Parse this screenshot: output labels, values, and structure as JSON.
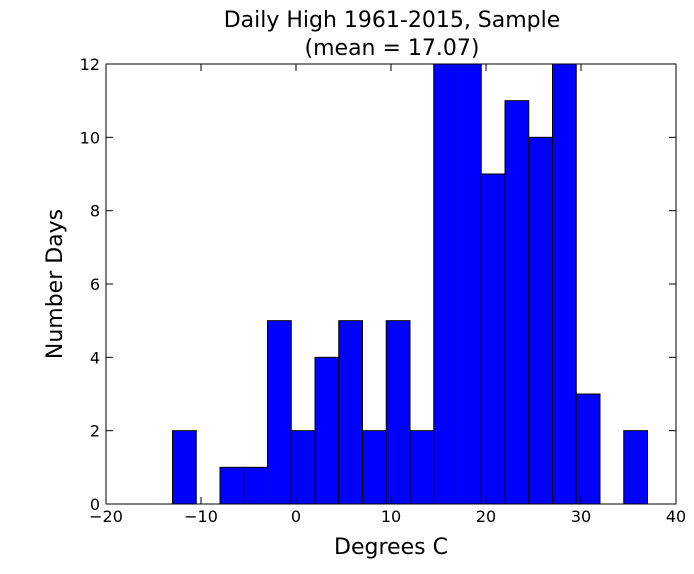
{
  "chart_data": {
    "type": "bar",
    "title": "Daily High 1961-2015, Sample",
    "subtitle": "(mean = 17.07)",
    "xlabel": "Degrees C",
    "ylabel": "Number Days",
    "xlim": [
      -20,
      40
    ],
    "ylim": [
      0,
      12
    ],
    "x_ticks": [
      -20,
      -10,
      0,
      10,
      20,
      30,
      40
    ],
    "x_tick_labels": [
      "−20",
      "−10",
      "0",
      "10",
      "20",
      "30",
      "40"
    ],
    "y_ticks": [
      0,
      2,
      4,
      6,
      8,
      10,
      12
    ],
    "y_tick_labels": [
      "0",
      "2",
      "4",
      "6",
      "8",
      "10",
      "12"
    ],
    "bar_color": "#0000ff",
    "edge_color": "#000000",
    "grid": false,
    "bins": [
      {
        "x0": -13.0,
        "x1": -10.5,
        "value": 2
      },
      {
        "x0": -8.0,
        "x1": -5.5,
        "value": 1
      },
      {
        "x0": -5.5,
        "x1": -3.0,
        "value": 1
      },
      {
        "x0": -3.0,
        "x1": -0.5,
        "value": 5
      },
      {
        "x0": -0.5,
        "x1": 2.0,
        "value": 2
      },
      {
        "x0": 2.0,
        "x1": 4.5,
        "value": 4
      },
      {
        "x0": 4.5,
        "x1": 7.0,
        "value": 5
      },
      {
        "x0": 7.0,
        "x1": 9.5,
        "value": 2
      },
      {
        "x0": 9.5,
        "x1": 12.0,
        "value": 5
      },
      {
        "x0": 12.0,
        "x1": 14.5,
        "value": 2
      },
      {
        "x0": 14.5,
        "x1": 17.0,
        "value": 12
      },
      {
        "x0": 17.0,
        "x1": 19.5,
        "value": 12
      },
      {
        "x0": 19.5,
        "x1": 22.0,
        "value": 9
      },
      {
        "x0": 22.0,
        "x1": 24.5,
        "value": 11
      },
      {
        "x0": 24.5,
        "x1": 27.0,
        "value": 10
      },
      {
        "x0": 27.0,
        "x1": 29.5,
        "value": 12
      },
      {
        "x0": 29.5,
        "x1": 32.0,
        "value": 3
      },
      {
        "x0": 34.5,
        "x1": 37.0,
        "value": 2
      }
    ]
  }
}
